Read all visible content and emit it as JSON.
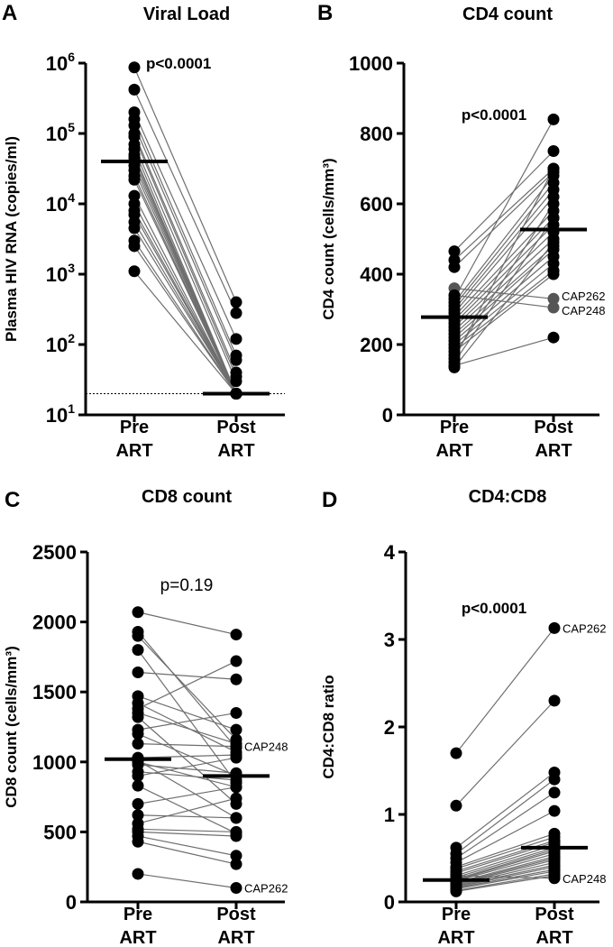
{
  "chart_data": [
    {
      "panel": "A",
      "type": "scatter",
      "title": "Viral Load",
      "ylabel": "Plasma HIV RNA (copies/ml)",
      "scale": "log",
      "ylim": [
        10,
        1000000
      ],
      "yticks": [
        {
          "v": 10,
          "base": "10",
          "exp": "1"
        },
        {
          "v": 100,
          "base": "10",
          "exp": "2"
        },
        {
          "v": 1000,
          "base": "10",
          "exp": "3"
        },
        {
          "v": 10000,
          "base": "10",
          "exp": "4"
        },
        {
          "v": 100000,
          "base": "10",
          "exp": "5"
        },
        {
          "v": 1000000,
          "base": "10",
          "exp": "6"
        }
      ],
      "categories": [
        [
          "Pre",
          "ART"
        ],
        [
          "Post",
          "ART"
        ]
      ],
      "pvalue": "p<0.0001",
      "pvalue_bold": true,
      "threshold": 20,
      "pairs": [
        [
          870000,
          400
        ],
        [
          420000,
          280
        ],
        [
          200000,
          120
        ],
        [
          160000,
          70
        ],
        [
          130000,
          60
        ],
        [
          100000,
          40
        ],
        [
          90000,
          35
        ],
        [
          70000,
          30
        ],
        [
          60000,
          20
        ],
        [
          50000,
          20
        ],
        [
          45000,
          20
        ],
        [
          40000,
          20
        ],
        [
          35000,
          20
        ],
        [
          30000,
          20
        ],
        [
          25000,
          20
        ],
        [
          22000,
          20
        ],
        [
          13000,
          20
        ],
        [
          10000,
          20
        ],
        [
          8000,
          20
        ],
        [
          7000,
          20
        ],
        [
          5500,
          20
        ],
        [
          4500,
          20
        ],
        [
          3000,
          20
        ],
        [
          2500,
          20
        ],
        [
          1100,
          20
        ]
      ],
      "medians": [
        40000,
        20
      ],
      "annotations": []
    },
    {
      "panel": "B",
      "type": "scatter",
      "title": "CD4 count",
      "ylabel": "CD4 count (cells/mm³)",
      "scale": "linear",
      "ylim": [
        0,
        1000
      ],
      "yticks": [
        {
          "v": 0,
          "label": "0"
        },
        {
          "v": 200,
          "label": "200"
        },
        {
          "v": 400,
          "label": "400"
        },
        {
          "v": 600,
          "label": "600"
        },
        {
          "v": 800,
          "label": "800"
        },
        {
          "v": 1000,
          "label": "1000"
        }
      ],
      "categories": [
        [
          "Pre",
          "ART"
        ],
        [
          "Post",
          "ART"
        ]
      ],
      "pvalue": "p<0.0001",
      "pvalue_bold": true,
      "pairs": [
        [
          465,
          750
        ],
        [
          440,
          700
        ],
        [
          420,
          690
        ],
        [
          360,
          330
        ],
        [
          340,
          305
        ],
        [
          330,
          840
        ],
        [
          320,
          680
        ],
        [
          310,
          660
        ],
        [
          300,
          640
        ],
        [
          290,
          620
        ],
        [
          280,
          580
        ],
        [
          270,
          560
        ],
        [
          260,
          540
        ],
        [
          250,
          520
        ],
        [
          240,
          500
        ],
        [
          230,
          480
        ],
        [
          220,
          470
        ],
        [
          210,
          450
        ],
        [
          200,
          430
        ],
        [
          190,
          410
        ],
        [
          180,
          400
        ],
        [
          170,
          600
        ],
        [
          160,
          700
        ],
        [
          150,
          560
        ],
        [
          140,
          220
        ],
        [
          135,
          490
        ]
      ],
      "gray": [
        [
          3,
          "post"
        ],
        [
          4,
          "post"
        ],
        [
          3,
          "pre"
        ]
      ],
      "medians": [
        278,
        527
      ],
      "annotations": [
        {
          "label": "CAP262",
          "pair": 3
        },
        {
          "label": "CAP248",
          "pair": 4
        }
      ]
    },
    {
      "panel": "C",
      "type": "scatter",
      "title": "CD8 count",
      "ylabel": "CD8 count (cells/mm³)",
      "scale": "linear",
      "ylim": [
        0,
        2500
      ],
      "yticks": [
        {
          "v": 0,
          "label": "0"
        },
        {
          "v": 500,
          "label": "500"
        },
        {
          "v": 1000,
          "label": "1000"
        },
        {
          "v": 1500,
          "label": "1500"
        },
        {
          "v": 2000,
          "label": "2000"
        },
        {
          "v": 2500,
          "label": "2500"
        }
      ],
      "categories": [
        [
          "Pre",
          "ART"
        ],
        [
          "Post",
          "ART"
        ]
      ],
      "pvalue": "p=0.19",
      "pvalue_bold": false,
      "pairs": [
        [
          2070,
          1910
        ],
        [
          1930,
          1100
        ],
        [
          1900,
          1160
        ],
        [
          1800,
          850
        ],
        [
          1640,
          1590
        ],
        [
          1470,
          1230
        ],
        [
          1420,
          1070
        ],
        [
          1380,
          1720
        ],
        [
          1350,
          1130
        ],
        [
          1320,
          700
        ],
        [
          1230,
          1350
        ],
        [
          1200,
          900
        ],
        [
          1130,
          1110
        ],
        [
          1030,
          1050
        ],
        [
          1010,
          600
        ],
        [
          1000,
          820
        ],
        [
          980,
          920
        ],
        [
          930,
          870
        ],
        [
          900,
          1030
        ],
        [
          830,
          490
        ],
        [
          700,
          820
        ],
        [
          620,
          600
        ],
        [
          560,
          740
        ],
        [
          520,
          500
        ],
        [
          500,
          470
        ],
        [
          470,
          330
        ],
        [
          430,
          270
        ],
        [
          200,
          100
        ]
      ],
      "medians": [
        1020,
        900
      ],
      "annotations": [
        {
          "label": "CAP248",
          "pair": 12
        },
        {
          "label": "CAP262",
          "pair": 27
        }
      ]
    },
    {
      "panel": "D",
      "type": "scatter",
      "title": "CD4:CD8",
      "ylabel": "CD4:CD8 ratio",
      "scale": "linear",
      "ylim": [
        0,
        4
      ],
      "yticks": [
        {
          "v": 0,
          "label": "0"
        },
        {
          "v": 1,
          "label": "1"
        },
        {
          "v": 2,
          "label": "2"
        },
        {
          "v": 3,
          "label": "3"
        },
        {
          "v": 4,
          "label": "4"
        }
      ],
      "categories": [
        [
          "Pre",
          "ART"
        ],
        [
          "Post",
          "ART"
        ]
      ],
      "pvalue": "p<0.0001",
      "pvalue_bold": true,
      "pairs": [
        [
          1.7,
          3.13
        ],
        [
          1.1,
          2.3
        ],
        [
          0.62,
          1.48
        ],
        [
          0.55,
          1.4
        ],
        [
          0.5,
          1.25
        ],
        [
          0.45,
          1.04
        ],
        [
          0.4,
          0.78
        ],
        [
          0.38,
          0.74
        ],
        [
          0.35,
          0.7
        ],
        [
          0.33,
          0.68
        ],
        [
          0.3,
          0.27
        ],
        [
          0.3,
          0.65
        ],
        [
          0.28,
          0.62
        ],
        [
          0.26,
          0.6
        ],
        [
          0.25,
          0.58
        ],
        [
          0.24,
          0.55
        ],
        [
          0.22,
          0.52
        ],
        [
          0.21,
          0.5
        ],
        [
          0.2,
          0.48
        ],
        [
          0.19,
          0.45
        ],
        [
          0.18,
          0.42
        ],
        [
          0.17,
          0.4
        ],
        [
          0.16,
          0.37
        ],
        [
          0.15,
          0.35
        ],
        [
          0.13,
          0.32
        ],
        [
          0.12,
          0.3
        ]
      ],
      "medians": [
        0.25,
        0.62
      ],
      "annotations": [
        {
          "label": "CAP262",
          "pair": 0
        },
        {
          "label": "CAP248",
          "pair": 10
        }
      ]
    }
  ]
}
